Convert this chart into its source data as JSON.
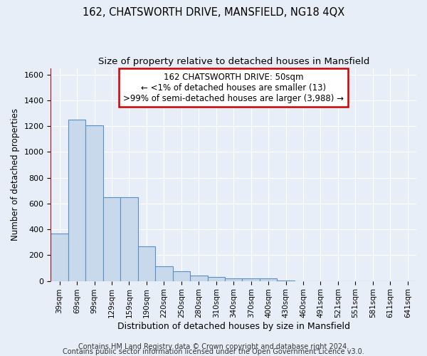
{
  "title": "162, CHATSWORTH DRIVE, MANSFIELD, NG18 4QX",
  "subtitle": "Size of property relative to detached houses in Mansfield",
  "xlabel": "Distribution of detached houses by size in Mansfield",
  "ylabel": "Number of detached properties",
  "categories": [
    "39sqm",
    "69sqm",
    "99sqm",
    "129sqm",
    "159sqm",
    "190sqm",
    "220sqm",
    "250sqm",
    "280sqm",
    "310sqm",
    "340sqm",
    "370sqm",
    "400sqm",
    "430sqm",
    "460sqm",
    "491sqm",
    "521sqm",
    "551sqm",
    "581sqm",
    "611sqm",
    "641sqm"
  ],
  "values": [
    370,
    1250,
    1205,
    650,
    650,
    270,
    115,
    75,
    40,
    30,
    20,
    20,
    20,
    5,
    0,
    0,
    0,
    0,
    0,
    0,
    0
  ],
  "bar_color": "#c9d9ec",
  "bar_edge_color": "#5a8fc3",
  "annotation_box_color": "#ffffff",
  "annotation_box_edge_color": "#cc0000",
  "annotation_text_line1": "162 CHATSWORTH DRIVE: 50sqm",
  "annotation_text_line2": "← <1% of detached houses are smaller (13)",
  "annotation_text_line3": ">99% of semi-detached houses are larger (3,988) →",
  "ylim": [
    0,
    1650
  ],
  "yticks": [
    0,
    200,
    400,
    600,
    800,
    1000,
    1200,
    1400,
    1600
  ],
  "background_color": "#e8eef7",
  "grid_color": "#ffffff",
  "vline_color": "#cc0000",
  "footer_line1": "Contains HM Land Registry data © Crown copyright and database right 2024.",
  "footer_line2": "Contains public sector information licensed under the Open Government Licence v3.0.",
  "title_fontsize": 10.5,
  "subtitle_fontsize": 9.5,
  "annotation_fontsize": 8.5,
  "footer_fontsize": 7,
  "ylabel_fontsize": 8.5,
  "xlabel_fontsize": 9
}
